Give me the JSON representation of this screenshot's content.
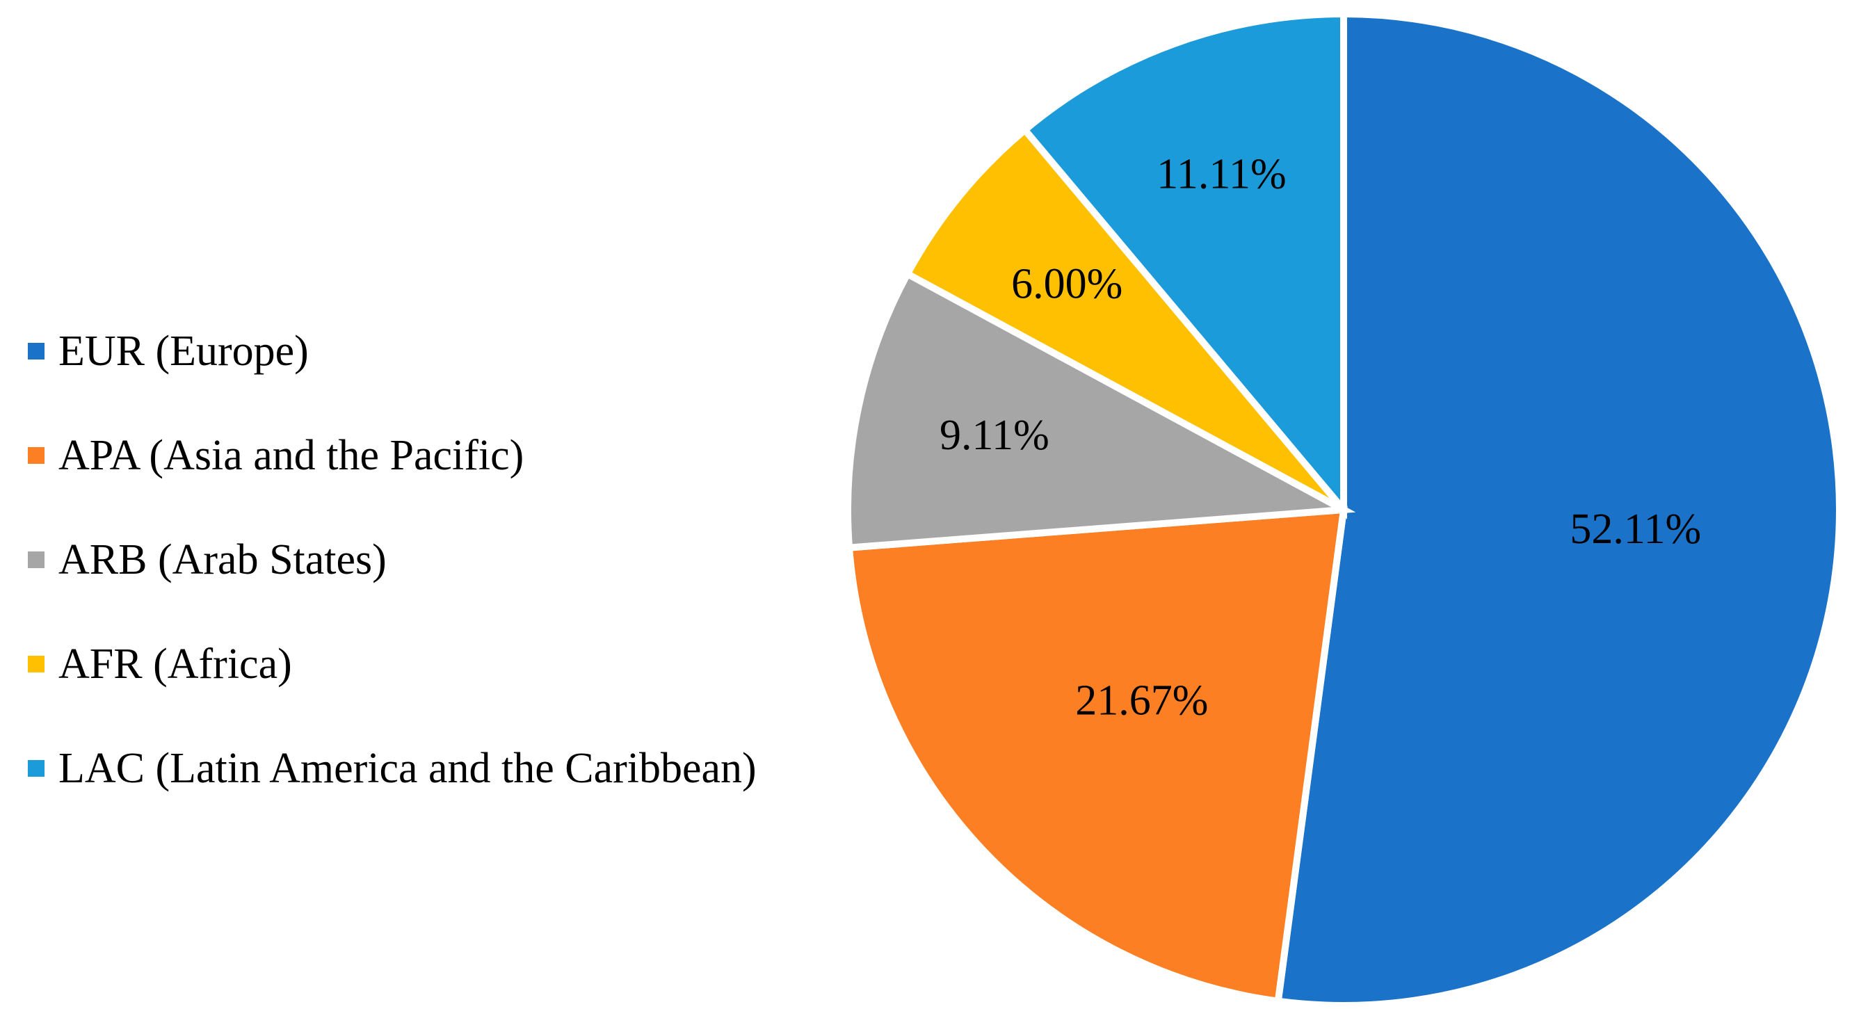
{
  "chart_data": {
    "type": "pie",
    "title": "",
    "legend_position": "left",
    "start_angle_deg": 0,
    "direction": "clockwise",
    "slices": [
      {
        "category": "EUR (Europe)",
        "value": 52.11,
        "label": "52.11%",
        "color": "#1a73c8"
      },
      {
        "category": "APA (Asia and the Pacific)",
        "value": 21.67,
        "label": "21.67%",
        "color": "#fd7f23"
      },
      {
        "category": "ARB (Arab States)",
        "value": 9.11,
        "label": "9.11%",
        "color": "#a6a6a6"
      },
      {
        "category": "AFR (Africa)",
        "value": 6.0,
        "label": "6.00%",
        "color": "#fec000"
      },
      {
        "category": "LAC (Latin America and the Caribbean)",
        "value": 11.11,
        "label": "11.11%",
        "color": "#1b9bd9"
      }
    ]
  }
}
